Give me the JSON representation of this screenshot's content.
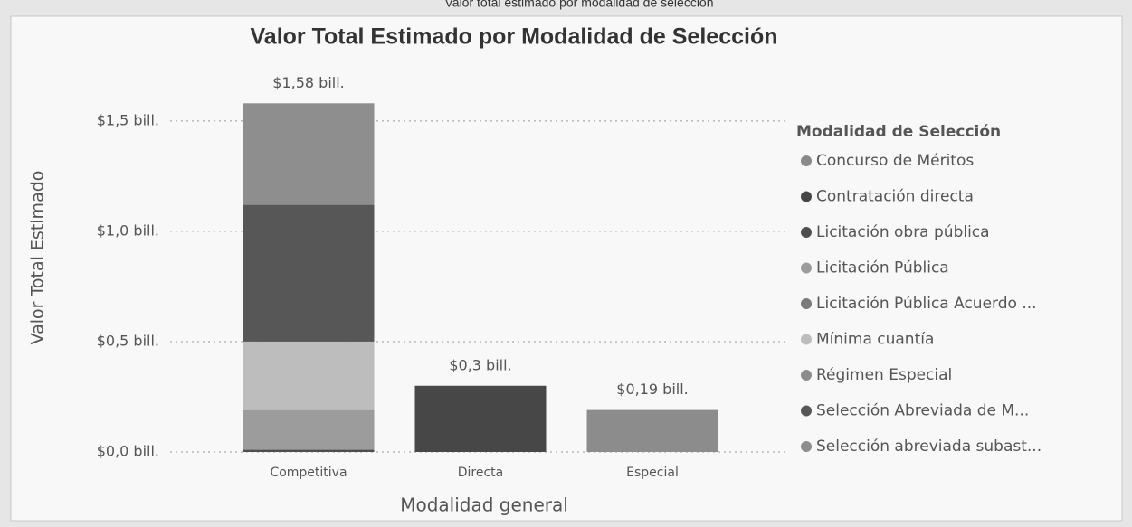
{
  "chart_data": {
    "type": "stacked_bar",
    "caption": "Valor total estimado por modalidad de selección",
    "title": "Valor Total Estimado por Modalidad de Selección",
    "y_label": "Valor Total Estimado",
    "x_label": "Modalidad general",
    "legend_title": "Modalidad de Selección",
    "legend": "right",
    "grid": true,
    "categories": [
      "Competitiva",
      "Directa",
      "Especial"
    ],
    "ylim": [
      0,
      1.7
    ],
    "yticks": [
      {
        "value": 0,
        "label": "$0,0 bill."
      },
      {
        "value": 0.5,
        "label": "$0,5 bill."
      },
      {
        "value": 1.0,
        "label": "$1,0 bill."
      },
      {
        "value": 1.5,
        "label": "$1,5 bill."
      }
    ],
    "series": [
      {
        "name": "Concurso de Méritos",
        "color": "#8a8a8a",
        "values": [
          null,
          null,
          null
        ]
      },
      {
        "name": "Contratación directa",
        "color": "#474747",
        "values": [
          null,
          0.3,
          null
        ]
      },
      {
        "name": "Licitación obra pública",
        "color": "#4e4e4e",
        "values": [
          0.01,
          null,
          null
        ]
      },
      {
        "name": "Licitación Pública",
        "color": "#9c9c9c",
        "values": [
          0.18,
          null,
          null
        ]
      },
      {
        "name": "Licitación Pública Acuerdo ...",
        "color": "#7a7a7a",
        "values": [
          null,
          null,
          null
        ]
      },
      {
        "name": "Mínima cuantía",
        "color": "#bdbdbd",
        "values": [
          0.31,
          null,
          null
        ]
      },
      {
        "name": "Régimen Especial",
        "color": "#8c8c8c",
        "values": [
          null,
          null,
          0.19
        ]
      },
      {
        "name": "Selección Abreviada de M...",
        "color": "#575757",
        "values": [
          0.62,
          null,
          null
        ]
      },
      {
        "name": "Selección abreviada subast...",
        "color": "#8e8e8e",
        "values": [
          0.46,
          null,
          null
        ]
      }
    ],
    "totals": [
      1.58,
      0.3,
      0.19
    ],
    "total_labels": [
      "$1,58 bill.",
      "$0,3 bill.",
      "$0,19 bill."
    ]
  }
}
